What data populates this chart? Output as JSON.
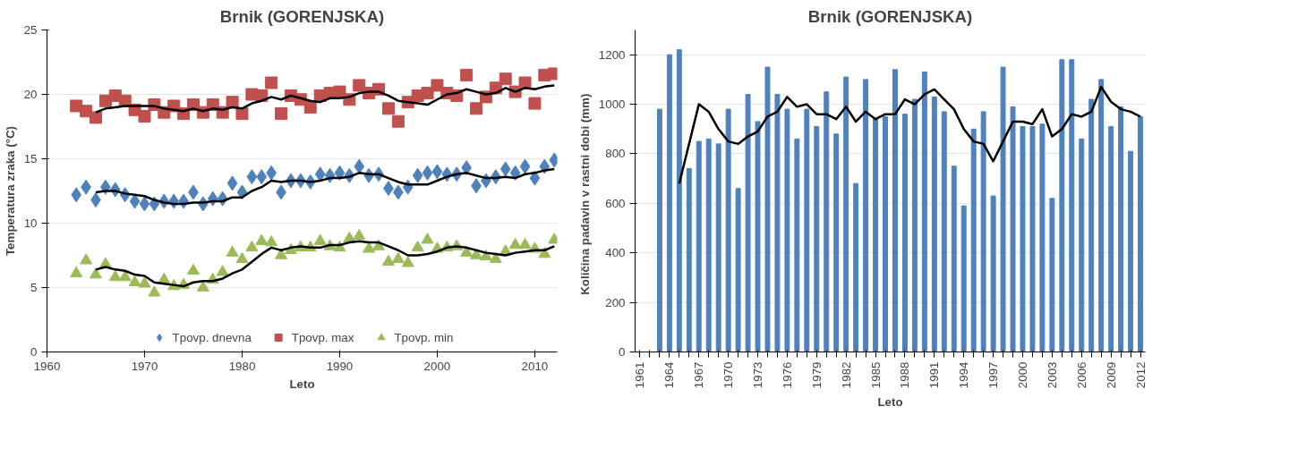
{
  "chart_data": [
    {
      "type": "scatter",
      "title": "Brnik (GORENJSKA)",
      "xlabel": "Leto",
      "ylabel": "Temperatura zraka (°C)",
      "x": [
        1963,
        1964,
        1965,
        1966,
        1967,
        1968,
        1969,
        1970,
        1971,
        1972,
        1973,
        1974,
        1975,
        1976,
        1977,
        1978,
        1979,
        1980,
        1981,
        1982,
        1983,
        1984,
        1985,
        1986,
        1987,
        1988,
        1989,
        1990,
        1991,
        1992,
        1993,
        1994,
        1995,
        1996,
        1997,
        1998,
        1999,
        2000,
        2001,
        2002,
        2003,
        2004,
        2005,
        2006,
        2007,
        2008,
        2009,
        2010,
        2011,
        2012
      ],
      "xlim": [
        1960,
        2012.3
      ],
      "xticks": [
        1960,
        1970,
        1980,
        1990,
        2000,
        2010
      ],
      "ylim": [
        0,
        25
      ],
      "yticks": [
        0,
        5,
        10,
        15,
        20,
        25
      ],
      "grid": "y",
      "legend": "bottom",
      "series": [
        {
          "name": "Tpovp. dnevna",
          "color": "#4f81bd",
          "marker": "diamond",
          "values": [
            12.2,
            12.8,
            11.8,
            12.8,
            12.6,
            12.2,
            11.7,
            11.5,
            11.5,
            11.7,
            11.7,
            11.7,
            12.4,
            11.5,
            11.9,
            11.9,
            13.1,
            12.4,
            13.6,
            13.6,
            13.9,
            12.4,
            13.3,
            13.3,
            13.2,
            13.8,
            13.7,
            13.9,
            13.7,
            14.4,
            13.7,
            13.8,
            12.7,
            12.4,
            12.8,
            13.7,
            13.9,
            14.0,
            13.8,
            13.8,
            14.3,
            12.9,
            13.3,
            13.6,
            14.2,
            13.9,
            14.4,
            13.5,
            14.4,
            14.9
          ]
        },
        {
          "name": "Tpovp. max",
          "color": "#c0504d",
          "marker": "square",
          "values": [
            19.1,
            18.7,
            18.2,
            19.5,
            19.9,
            19.5,
            18.8,
            18.3,
            19.2,
            18.6,
            19.1,
            18.5,
            19.2,
            18.6,
            19.2,
            18.6,
            19.4,
            18.5,
            20.0,
            19.9,
            20.9,
            18.5,
            19.9,
            19.6,
            19.0,
            19.9,
            20.1,
            20.2,
            19.6,
            20.7,
            20.1,
            20.4,
            18.9,
            17.9,
            19.4,
            19.9,
            20.1,
            20.7,
            20.1,
            19.9,
            21.5,
            18.9,
            19.8,
            20.5,
            21.2,
            20.2,
            20.9,
            19.3,
            21.5,
            21.6
          ]
        },
        {
          "name": "Tpovp. min",
          "color": "#9bbb59",
          "marker": "triangle",
          "values": [
            6.1,
            7.1,
            6.0,
            6.8,
            5.8,
            5.8,
            5.4,
            5.3,
            4.6,
            5.6,
            5.1,
            5.2,
            6.3,
            5.0,
            5.6,
            6.2,
            7.7,
            7.2,
            8.1,
            8.6,
            8.5,
            7.5,
            7.9,
            8.1,
            8.1,
            8.6,
            8.2,
            8.1,
            8.8,
            9.0,
            8.0,
            8.2,
            7.0,
            7.2,
            6.9,
            8.1,
            8.7,
            8.0,
            8.1,
            8.2,
            7.7,
            7.5,
            7.4,
            7.2,
            7.8,
            8.3,
            8.3,
            8.0,
            7.6,
            8.7
          ]
        },
        {
          "type": "line",
          "color": "#000000",
          "x": [
            1965,
            1966,
            1967,
            1968,
            1969,
            1970,
            1971,
            1972,
            1973,
            1974,
            1975,
            1976,
            1977,
            1978,
            1979,
            1980,
            1981,
            1982,
            1983,
            1984,
            1985,
            1986,
            1987,
            1988,
            1989,
            1990,
            1991,
            1992,
            1993,
            1994,
            1995,
            1996,
            1997,
            1998,
            1999,
            2000,
            2001,
            2002,
            2003,
            2004,
            2005,
            2006,
            2007,
            2008,
            2009,
            2010,
            2011,
            2012
          ],
          "values": [
            12.4,
            12.5,
            12.5,
            12.3,
            12.2,
            12.1,
            11.8,
            11.6,
            11.5,
            11.5,
            11.6,
            11.6,
            11.7,
            11.7,
            12.0,
            12.0,
            12.5,
            12.8,
            13.3,
            13.2,
            13.3,
            13.3,
            13.2,
            13.3,
            13.5,
            13.5,
            13.6,
            13.9,
            13.8,
            13.8,
            13.5,
            13.2,
            13.0,
            13.0,
            13.0,
            13.3,
            13.6,
            13.8,
            13.9,
            13.7,
            13.5,
            13.5,
            13.6,
            13.5,
            13.8,
            13.9,
            14.1,
            14.2
          ]
        },
        {
          "type": "line",
          "color": "#000000",
          "x": [
            1965,
            1966,
            1967,
            1968,
            1969,
            1970,
            1971,
            1972,
            1973,
            1974,
            1975,
            1976,
            1977,
            1978,
            1979,
            1980,
            1981,
            1982,
            1983,
            1984,
            1985,
            1986,
            1987,
            1988,
            1989,
            1990,
            1991,
            1992,
            1993,
            1994,
            1995,
            1996,
            1997,
            1998,
            1999,
            2000,
            2001,
            2002,
            2003,
            2004,
            2005,
            2006,
            2007,
            2008,
            2009,
            2010,
            2011,
            2012
          ],
          "values": [
            18.6,
            18.9,
            19.0,
            19.1,
            19.1,
            19.1,
            19.1,
            18.9,
            18.8,
            18.7,
            18.9,
            18.7,
            18.9,
            18.8,
            19.0,
            18.9,
            19.3,
            19.5,
            19.8,
            19.6,
            19.9,
            19.7,
            19.5,
            19.4,
            19.7,
            19.7,
            19.8,
            20.1,
            20.2,
            20.2,
            19.9,
            19.5,
            19.4,
            19.3,
            19.2,
            19.6,
            20.0,
            20.1,
            20.4,
            20.2,
            20.0,
            20.1,
            20.5,
            20.2,
            20.5,
            20.4,
            20.6,
            20.7
          ]
        },
        {
          "type": "line",
          "color": "#000000",
          "x": [
            1965,
            1966,
            1967,
            1968,
            1969,
            1970,
            1971,
            1972,
            1973,
            1974,
            1975,
            1976,
            1977,
            1978,
            1979,
            1980,
            1981,
            1982,
            1983,
            1984,
            1985,
            1986,
            1987,
            1988,
            1989,
            1990,
            1991,
            1992,
            1993,
            1994,
            1995,
            1996,
            1997,
            1998,
            1999,
            2000,
            2001,
            2002,
            2003,
            2004,
            2005,
            2006,
            2007,
            2008,
            2009,
            2010,
            2011,
            2012
          ],
          "values": [
            6.4,
            6.6,
            6.4,
            6.3,
            6.0,
            5.9,
            5.4,
            5.3,
            5.2,
            5.1,
            5.4,
            5.5,
            5.5,
            5.7,
            6.1,
            6.4,
            7.0,
            7.6,
            8.1,
            7.9,
            8.1,
            8.2,
            8.1,
            8.1,
            8.3,
            8.3,
            8.5,
            8.6,
            8.5,
            8.5,
            8.2,
            7.9,
            7.5,
            7.5,
            7.6,
            7.8,
            8.1,
            8.2,
            8.1,
            7.9,
            7.7,
            7.6,
            7.5,
            7.7,
            7.8,
            7.9,
            7.9,
            8.2
          ]
        }
      ]
    },
    {
      "type": "bar",
      "title": "Brnik (GORENJSKA)",
      "xlabel": "Leto",
      "ylabel": "Količina  padavin  v rastni dobi (mm)",
      "categories": [
        "1961",
        null,
        null,
        "1964",
        null,
        null,
        "1967",
        null,
        null,
        "1970",
        null,
        null,
        "1973",
        null,
        null,
        "1976",
        null,
        null,
        "1979",
        null,
        null,
        "1982",
        null,
        null,
        "1985",
        null,
        null,
        "1988",
        null,
        null,
        "1991",
        null,
        null,
        "1994",
        null,
        null,
        "1997",
        null,
        null,
        "2000",
        null,
        null,
        "2003",
        null,
        null,
        "2006",
        null,
        null,
        "2009",
        null,
        null,
        "2012"
      ],
      "ylim": [
        0,
        1300
      ],
      "yticks": [
        0,
        200,
        400,
        600,
        800,
        1000,
        1200
      ],
      "grid": "y",
      "legend": false,
      "series": [
        {
          "color": "#4f81bd",
          "values": [
            null,
            null,
            980,
            1200,
            1220,
            740,
            850,
            860,
            840,
            980,
            660,
            1040,
            930,
            1150,
            1040,
            980,
            860,
            980,
            910,
            1050,
            880,
            1110,
            680,
            1100,
            940,
            950,
            1140,
            960,
            1020,
            1130,
            1030,
            970,
            750,
            590,
            900,
            970,
            630,
            1150,
            990,
            910,
            910,
            920,
            620,
            1180,
            1180,
            860,
            1020,
            1100,
            910,
            990,
            810,
            950
          ]
        },
        {
          "type": "line",
          "color": "#000000",
          "values": [
            null,
            null,
            null,
            null,
            680,
            840,
            1000,
            970,
            900,
            850,
            840,
            870,
            890,
            950,
            970,
            1030,
            990,
            1000,
            960,
            960,
            940,
            990,
            930,
            970,
            940,
            960,
            960,
            1020,
            1000,
            1040,
            1060,
            1020,
            980,
            900,
            850,
            840,
            770,
            850,
            930,
            930,
            920,
            980,
            870,
            900,
            960,
            950,
            970,
            1070,
            1010,
            980,
            970,
            950
          ]
        }
      ]
    }
  ]
}
